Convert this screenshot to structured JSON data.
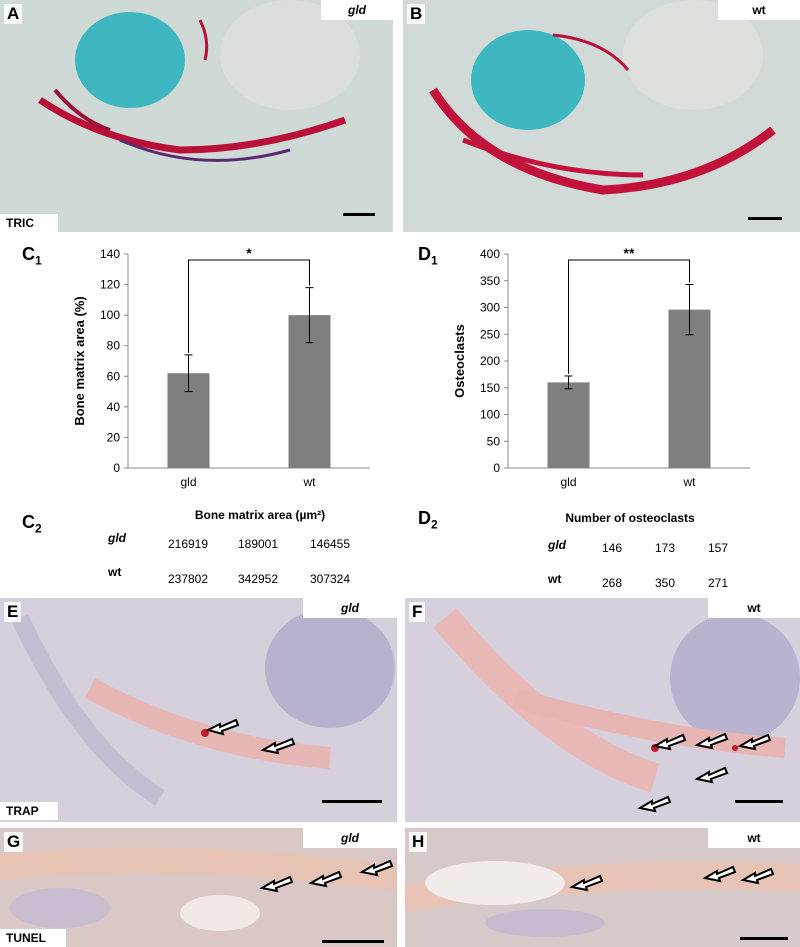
{
  "panels": {
    "A": {
      "letter": "A",
      "tag": "gld",
      "stain": "TRIC"
    },
    "B": {
      "letter": "B",
      "tag": "wt"
    },
    "E": {
      "letter": "E",
      "tag": "gld",
      "stain": "TRAP"
    },
    "F": {
      "letter": "F",
      "tag": "wt"
    },
    "G": {
      "letter": "G",
      "tag": "gld",
      "stain": "TUNEL"
    },
    "H": {
      "letter": "H",
      "tag": "wt"
    }
  },
  "C1": {
    "letter": "C",
    "sub": "1"
  },
  "D1": {
    "letter": "D",
    "sub": "1"
  },
  "C2": {
    "letter": "C",
    "sub": "2"
  },
  "D2": {
    "letter": "D",
    "sub": "2"
  },
  "table_c2": {
    "title": "Bone matrix area (µm²)",
    "rows": [
      {
        "label": "gld",
        "values": [
          "216919",
          "189001",
          "146455"
        ]
      },
      {
        "label": "wt",
        "values": [
          "237802",
          "342952",
          "307324"
        ]
      }
    ]
  },
  "table_d2": {
    "title": "Number of osteoclasts",
    "rows": [
      {
        "label": "gld",
        "values": [
          "146",
          "173",
          "157"
        ]
      },
      {
        "label": "wt",
        "values": [
          "268",
          "350",
          "271"
        ]
      }
    ]
  },
  "chart_data": [
    {
      "type": "bar",
      "categories": [
        "gld",
        "wt"
      ],
      "values": [
        62,
        100
      ],
      "errors": [
        12,
        18
      ],
      "ylabel": "Bone matrix area (%)",
      "xlabel": "",
      "ylim": [
        0,
        140
      ],
      "yticks": [
        0,
        20,
        40,
        60,
        80,
        100,
        120,
        140
      ],
      "significance": "*",
      "bar_color": "#7f7f7f"
    },
    {
      "type": "bar",
      "categories": [
        "gld",
        "wt"
      ],
      "values": [
        160,
        296
      ],
      "errors": [
        12,
        47
      ],
      "ylabel": "Osteoclasts",
      "xlabel": "",
      "ylim": [
        0,
        400
      ],
      "yticks": [
        0,
        50,
        100,
        150,
        200,
        250,
        300,
        350,
        400
      ],
      "significance": "**",
      "bar_color": "#7f7f7f"
    }
  ]
}
